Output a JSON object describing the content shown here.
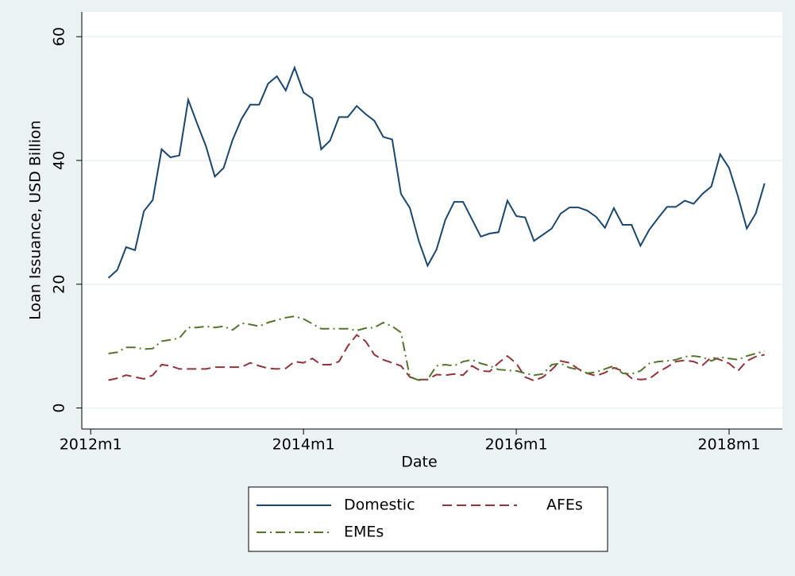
{
  "chart_data": {
    "type": "line",
    "xlabel": "Date",
    "ylabel": "Loan Issuance, USD Billion",
    "x": [
      "2012m3",
      "2012m4",
      "2012m5",
      "2012m6",
      "2012m7",
      "2012m8",
      "2012m9",
      "2012m10",
      "2012m11",
      "2012m12",
      "2013m1",
      "2013m2",
      "2013m3",
      "2013m4",
      "2013m5",
      "2013m6",
      "2013m7",
      "2013m8",
      "2013m9",
      "2013m10",
      "2013m11",
      "2013m12",
      "2014m1",
      "2014m2",
      "2014m3",
      "2014m4",
      "2014m5",
      "2014m6",
      "2014m7",
      "2014m8",
      "2014m9",
      "2014m10",
      "2014m11",
      "2014m12",
      "2015m1",
      "2015m2",
      "2015m3",
      "2015m4",
      "2015m5",
      "2015m6",
      "2015m7",
      "2015m8",
      "2015m9",
      "2015m10",
      "2015m11",
      "2015m12",
      "2016m1",
      "2016m2",
      "2016m3",
      "2016m4",
      "2016m5",
      "2016m6",
      "2016m7",
      "2016m8",
      "2016m9",
      "2016m10",
      "2016m11",
      "2016m12",
      "2017m1",
      "2017m2",
      "2017m3",
      "2017m4",
      "2017m5",
      "2017m6",
      "2017m7",
      "2017m8",
      "2017m9",
      "2017m10",
      "2017m11",
      "2017m12",
      "2018m1",
      "2018m2",
      "2018m3",
      "2018m4",
      "2018m5"
    ],
    "series": [
      {
        "name": "Domestic",
        "color": "#1a476f",
        "dash": "solid",
        "values": [
          21,
          22.3,
          26,
          25.5,
          31.8,
          33.6,
          41.8,
          40.5,
          40.8,
          49.8,
          46,
          42.3,
          37.4,
          38.8,
          43.3,
          46.7,
          49,
          49,
          52.4,
          53.6,
          51.3,
          55,
          51,
          50,
          41.8,
          43.2,
          47,
          47,
          48.8,
          47.5,
          46.4,
          43.8,
          43.4,
          34.6,
          32.3,
          27,
          23,
          25.6,
          30.4,
          33.3,
          33.3,
          30.5,
          27.7,
          28.2,
          28.4,
          33.5,
          31,
          30.8,
          27,
          28,
          29,
          31.4,
          32.4,
          32.4,
          31.9,
          30.9,
          29.1,
          32.3,
          29.6,
          29.6,
          26.2,
          28.8,
          30.7,
          32.5,
          32.5,
          33.5,
          33,
          34.6,
          35.8,
          41,
          38.8,
          34.2,
          29,
          31.4,
          36.3
        ]
      },
      {
        "name": "AFEs",
        "color": "#90353b",
        "dash": "dash",
        "values": [
          4.5,
          4.8,
          5.3,
          5,
          4.7,
          5.3,
          7,
          6.8,
          6.3,
          6.3,
          6.3,
          6.3,
          6.6,
          6.6,
          6.6,
          6.6,
          7.3,
          6.8,
          6.4,
          6.3,
          6.4,
          7.5,
          7.3,
          8,
          7,
          7,
          7.5,
          10,
          11.8,
          10.8,
          8.6,
          7.8,
          7.3,
          6.8,
          5,
          4.6,
          4.6,
          5.4,
          5.3,
          5.5,
          5.3,
          6.8,
          6,
          5.9,
          7.3,
          8.4,
          7.2,
          5,
          4.4,
          5,
          6.2,
          7.6,
          7.3,
          6.3,
          5.6,
          5.2,
          5.7,
          6.5,
          6,
          4.8,
          4.6,
          4.7,
          5.8,
          6.6,
          7.5,
          7.7,
          7.5,
          6.9,
          8.2,
          7.8,
          7.2,
          6,
          7.6,
          8.3,
          8.6
        ]
      },
      {
        "name": "EMEs",
        "color": "#55752f",
        "dash": "dashdot",
        "values": [
          8.8,
          9,
          9.8,
          9.8,
          9.5,
          9.6,
          10.8,
          11,
          11.3,
          13,
          13,
          13.2,
          13,
          13.2,
          12.6,
          13.7,
          13.5,
          13.2,
          13.8,
          14.2,
          14.6,
          14.8,
          14.4,
          13.6,
          12.8,
          12.8,
          12.8,
          12.8,
          12.5,
          12.9,
          13,
          13.8,
          13.2,
          12.2,
          5,
          4.5,
          4.6,
          6.8,
          7,
          6.8,
          7.5,
          7.8,
          7.2,
          6.8,
          6.2,
          6.1,
          6,
          5.6,
          5.3,
          5.5,
          7,
          7.2,
          6.5,
          6.2,
          5.6,
          5.8,
          6.3,
          6.8,
          5.6,
          5.5,
          6,
          7.2,
          7.5,
          7.6,
          7.8,
          8.3,
          8.4,
          8.2,
          7.6,
          8.2,
          8,
          7.8,
          8.4,
          8.8,
          9.2
        ]
      }
    ],
    "xlim": [
      "2011m12",
      "2018m7"
    ],
    "xticks": [
      "2012m1",
      "2014m1",
      "2016m1",
      "2018m1"
    ],
    "ylim": [
      -3.4,
      64
    ],
    "yticks": [
      0,
      20,
      40,
      60
    ],
    "grid": true,
    "legend": "bottom"
  }
}
